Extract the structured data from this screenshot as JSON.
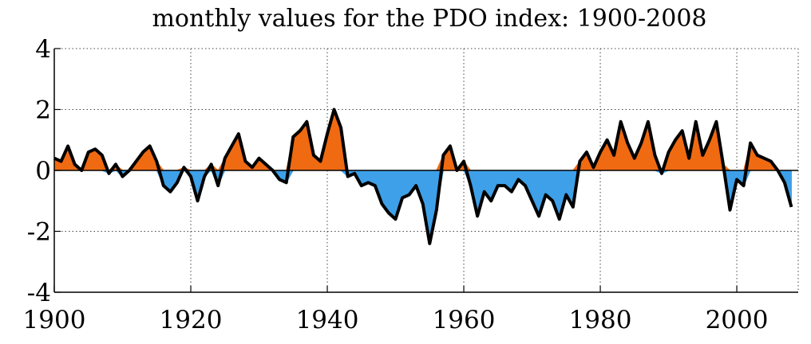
{
  "chart_data": {
    "type": "area",
    "title": "monthly values for the PDO index: 1900-2008",
    "xlabel": "",
    "ylabel": "",
    "xlim": [
      1900,
      2009
    ],
    "ylim": [
      -4,
      4
    ],
    "x_ticks": [
      1900,
      1920,
      1940,
      1960,
      1980,
      2000
    ],
    "y_ticks": [
      4,
      2,
      0,
      -2,
      -4
    ],
    "x_tick_labels": [
      "1900",
      "1920",
      "1940",
      "1960",
      "1980",
      "2000"
    ],
    "y_tick_labels": [
      "4",
      "2",
      "0",
      "-2",
      "-4"
    ],
    "grid": true,
    "colors": {
      "positive": "#f06a12",
      "negative": "#3ea0e8",
      "smooth": "#000000"
    },
    "series": [
      {
        "name": "monthly PDO index (positive anomalies filled orange, negative filled blue)",
        "style": "filled-area",
        "x": [
          1900,
          1901,
          1902,
          1903,
          1904,
          1905,
          1906,
          1907,
          1908,
          1909,
          1910,
          1911,
          1912,
          1913,
          1914,
          1915,
          1916,
          1917,
          1918,
          1919,
          1920,
          1921,
          1922,
          1923,
          1924,
          1925,
          1926,
          1927,
          1928,
          1929,
          1930,
          1931,
          1932,
          1933,
          1934,
          1935,
          1936,
          1937,
          1938,
          1939,
          1940,
          1941,
          1942,
          1943,
          1944,
          1945,
          1946,
          1947,
          1948,
          1949,
          1950,
          1951,
          1952,
          1953,
          1954,
          1955,
          1956,
          1957,
          1958,
          1959,
          1960,
          1961,
          1962,
          1963,
          1964,
          1965,
          1966,
          1967,
          1968,
          1969,
          1970,
          1971,
          1972,
          1973,
          1974,
          1975,
          1976,
          1977,
          1978,
          1979,
          1980,
          1981,
          1982,
          1983,
          1984,
          1985,
          1986,
          1987,
          1988,
          1989,
          1990,
          1991,
          1992,
          1993,
          1994,
          1995,
          1996,
          1997,
          1998,
          1999,
          2000,
          2001,
          2002,
          2003,
          2004,
          2005,
          2006,
          2007,
          2008
        ],
        "values": [
          0.4,
          0.3,
          0.8,
          0.2,
          0.0,
          0.6,
          0.7,
          0.5,
          -0.1,
          0.2,
          -0.2,
          0.0,
          0.3,
          0.6,
          0.8,
          0.3,
          -0.5,
          -0.7,
          -0.4,
          0.1,
          -0.2,
          -1.0,
          -0.2,
          0.2,
          -0.5,
          0.4,
          0.8,
          1.2,
          0.3,
          0.1,
          0.4,
          0.2,
          0.0,
          -0.3,
          -0.4,
          1.1,
          1.3,
          1.6,
          0.5,
          0.3,
          1.2,
          2.0,
          1.4,
          -0.2,
          -0.1,
          -0.5,
          -0.4,
          -0.5,
          -1.1,
          -1.4,
          -1.6,
          -0.9,
          -0.8,
          -0.5,
          -1.1,
          -2.4,
          -1.3,
          0.5,
          0.8,
          0.0,
          0.3,
          -0.5,
          -1.5,
          -0.7,
          -1.0,
          -0.5,
          -0.5,
          -0.7,
          -0.3,
          -0.5,
          -1.0,
          -1.5,
          -0.8,
          -1.0,
          -1.6,
          -0.8,
          -1.2,
          0.3,
          0.6,
          0.1,
          0.6,
          1.0,
          0.5,
          1.6,
          0.9,
          0.4,
          0.9,
          1.6,
          0.5,
          -0.1,
          0.6,
          1.0,
          1.3,
          0.4,
          1.6,
          0.5,
          1.0,
          1.6,
          0.2,
          -1.3,
          -0.3,
          -0.5,
          0.9,
          0.5,
          0.4,
          0.3,
          0.0,
          -0.4,
          -1.2
        ]
      },
      {
        "name": "smoothed PDO index",
        "style": "thick-line",
        "x": [
          1900,
          1901,
          1902,
          1903,
          1904,
          1905,
          1906,
          1907,
          1908,
          1909,
          1910,
          1911,
          1912,
          1913,
          1914,
          1915,
          1916,
          1917,
          1918,
          1919,
          1920,
          1921,
          1922,
          1923,
          1924,
          1925,
          1926,
          1927,
          1928,
          1929,
          1930,
          1931,
          1932,
          1933,
          1934,
          1935,
          1936,
          1937,
          1938,
          1939,
          1940,
          1941,
          1942,
          1943,
          1944,
          1945,
          1946,
          1947,
          1948,
          1949,
          1950,
          1951,
          1952,
          1953,
          1954,
          1955,
          1956,
          1957,
          1958,
          1959,
          1960,
          1961,
          1962,
          1963,
          1964,
          1965,
          1966,
          1967,
          1968,
          1969,
          1970,
          1971,
          1972,
          1973,
          1974,
          1975,
          1976,
          1977,
          1978,
          1979,
          1980,
          1981,
          1982,
          1983,
          1984,
          1985,
          1986,
          1987,
          1988,
          1989,
          1990,
          1991,
          1992,
          1993,
          1994,
          1995,
          1996,
          1997,
          1998,
          1999,
          2000,
          2001,
          2002,
          2003,
          2004,
          2005,
          2006,
          2007,
          2008
        ],
        "values": [
          0.4,
          0.3,
          0.8,
          0.2,
          0.0,
          0.6,
          0.7,
          0.5,
          -0.1,
          0.2,
          -0.2,
          0.0,
          0.3,
          0.6,
          0.8,
          0.3,
          -0.5,
          -0.7,
          -0.4,
          0.1,
          -0.2,
          -1.0,
          -0.2,
          0.2,
          -0.5,
          0.4,
          0.8,
          1.2,
          0.3,
          0.1,
          0.4,
          0.2,
          0.0,
          -0.3,
          -0.4,
          1.1,
          1.3,
          1.6,
          0.5,
          0.3,
          1.2,
          2.0,
          1.4,
          -0.2,
          -0.1,
          -0.5,
          -0.4,
          -0.5,
          -1.1,
          -1.4,
          -1.6,
          -0.9,
          -0.8,
          -0.5,
          -1.1,
          -2.4,
          -1.3,
          0.5,
          0.8,
          0.0,
          0.3,
          -0.5,
          -1.5,
          -0.7,
          -1.0,
          -0.5,
          -0.5,
          -0.7,
          -0.3,
          -0.5,
          -1.0,
          -1.5,
          -0.8,
          -1.0,
          -1.6,
          -0.8,
          -1.2,
          0.3,
          0.6,
          0.1,
          0.6,
          1.0,
          0.5,
          1.6,
          0.9,
          0.4,
          0.9,
          1.6,
          0.5,
          -0.1,
          0.6,
          1.0,
          1.3,
          0.4,
          1.6,
          0.5,
          1.0,
          1.6,
          0.2,
          -1.3,
          -0.3,
          -0.5,
          0.9,
          0.5,
          0.4,
          0.3,
          0.0,
          -0.4,
          -1.2
        ]
      }
    ]
  }
}
